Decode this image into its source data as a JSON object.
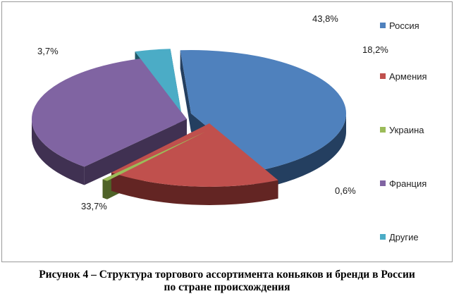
{
  "chart_data": {
    "type": "pie",
    "title": "",
    "slices": [
      {
        "name": "Россия",
        "value": 43.8,
        "label": "43,8%",
        "color": "#4f81bd",
        "side": "#243f60"
      },
      {
        "name": "Армения",
        "value": 18.2,
        "label": "18,2%",
        "color": "#c0504d",
        "side": "#632523"
      },
      {
        "name": "Украина",
        "value": 0.6,
        "label": "0,6%",
        "color": "#9bbb59",
        "side": "#4f6228"
      },
      {
        "name": "Франция",
        "value": 33.7,
        "label": "33,7%",
        "color": "#8064a2",
        "side": "#403152"
      },
      {
        "name": "Другие",
        "value": 3.7,
        "label": "3,7%",
        "color": "#4bacc6",
        "side": "#205867"
      }
    ],
    "legend_position": "right"
  },
  "caption": {
    "line1": "Рисунок 4 – Структура торгового ассортимента коньяков и бренди в России",
    "line2": "по стране происхождения"
  }
}
